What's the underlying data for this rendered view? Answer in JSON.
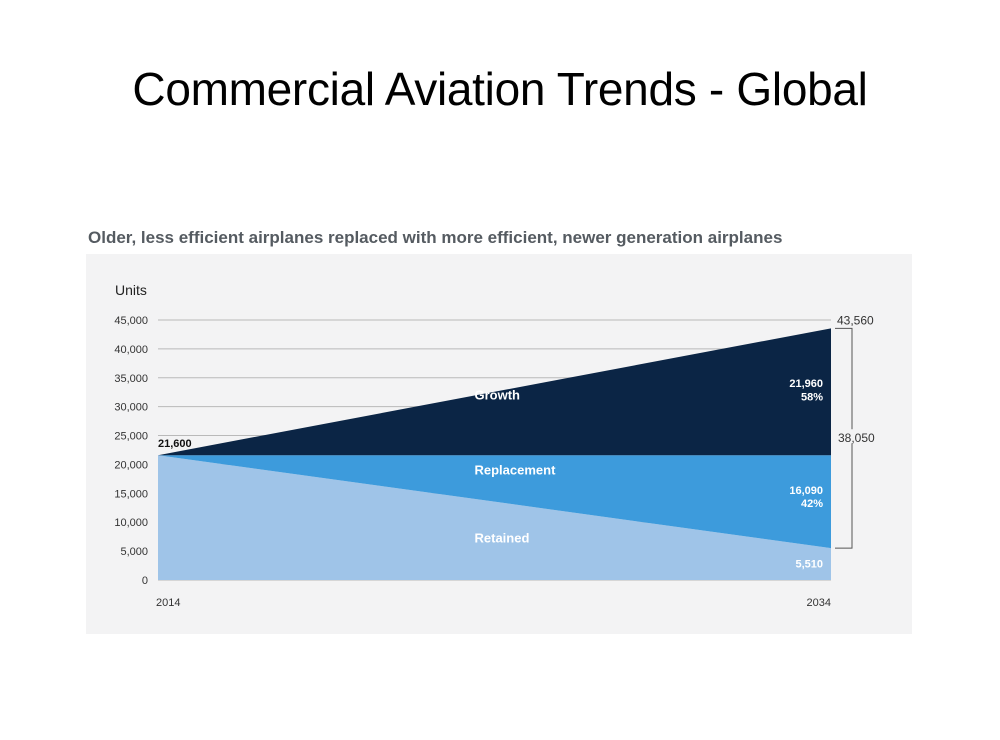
{
  "slide": {
    "title": "Commercial Aviation Trends - Global"
  },
  "chart_data": {
    "type": "area",
    "subtitle": "Older, less efficient airplanes replaced with more efficient, newer generation airplanes",
    "ylabel": "Units",
    "ylim": [
      0,
      45000
    ],
    "yticks": [
      0,
      5000,
      10000,
      15000,
      20000,
      25000,
      30000,
      35000,
      40000,
      45000
    ],
    "ytick_labels": [
      "0",
      "5,000",
      "10,000",
      "15,000",
      "20,000",
      "25,000",
      "30,000",
      "35,000",
      "40,000",
      "45,000"
    ],
    "x": [
      2014,
      2034
    ],
    "x_labels": [
      "2014",
      "2034"
    ],
    "grid": true,
    "series": [
      {
        "name": "Retained",
        "values": [
          21600,
          5510
        ],
        "color": "#9fc4e8"
      },
      {
        "name": "Replacement",
        "values": [
          0,
          16090
        ],
        "color": "#3d9bdc"
      },
      {
        "name": "Growth",
        "values": [
          0,
          21960
        ],
        "color": "#0b2545"
      }
    ],
    "annotations": {
      "start_total": "21,600",
      "end_total": "43,560",
      "new_deliveries": "38,050",
      "growth_value": "21,960",
      "growth_pct": "58%",
      "replacement_value": "16,090",
      "replacement_pct": "42%",
      "retained_value": "5,510"
    }
  }
}
